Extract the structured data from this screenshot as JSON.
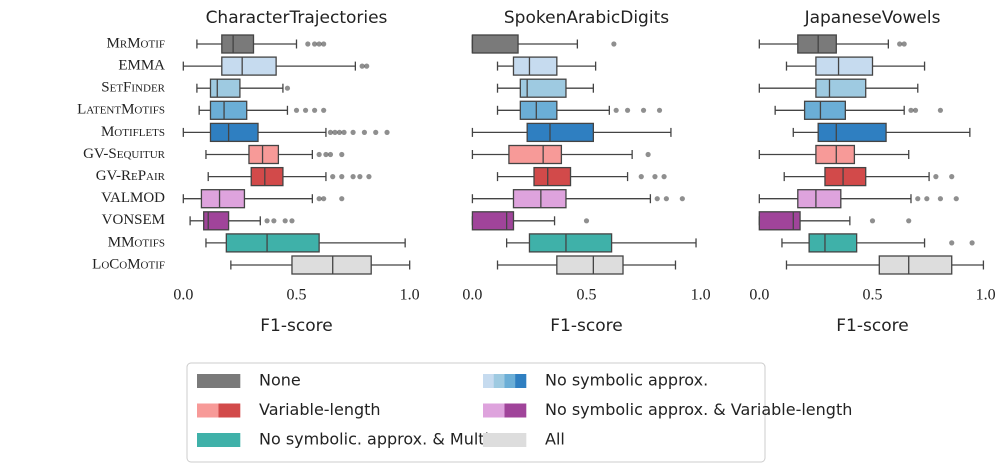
{
  "chart_data": [
    {
      "type": "box",
      "title": "CharacterTrajectories",
      "xlabel": "F1-score",
      "categories": [
        "MrMotif",
        "EMMA",
        "SetFinder",
        "LatentMotifs",
        "Motiflets",
        "GV-Sequitur",
        "GV-RePair",
        "VALMOD",
        "VONSEM",
        "MMotifs",
        "LoCoMotif"
      ],
      "colors": [
        "#7a7a7a",
        "#c6dbef",
        "#9ecae1",
        "#6baed6",
        "#2f7fc1",
        "#f79a98",
        "#d24a4a",
        "#dea3dd",
        "#a0449a",
        "#3fb1a9",
        "#dddddd"
      ],
      "xlim": [
        -0.05,
        1.05
      ],
      "xticks": [
        {
          "value": 0,
          "label": "0.0"
        },
        0.5,
        {
          "value": 1,
          "label": "1.0"
        }
      ],
      "boxes": [
        {
          "whislo": 0.06,
          "q1": 0.17,
          "med": 0.22,
          "q3": 0.31,
          "whishi": 0.5,
          "fliers": [
            0.55,
            0.58,
            0.6,
            0.62
          ]
        },
        {
          "whislo": 0.0,
          "q1": 0.17,
          "med": 0.26,
          "q3": 0.41,
          "whishi": 0.76,
          "fliers": [
            0.79,
            0.81
          ]
        },
        {
          "whislo": 0.06,
          "q1": 0.12,
          "med": 0.15,
          "q3": 0.25,
          "whishi": 0.44,
          "fliers": [
            0.46
          ]
        },
        {
          "whislo": 0.07,
          "q1": 0.12,
          "med": 0.18,
          "q3": 0.28,
          "whishi": 0.46,
          "fliers": [
            0.5,
            0.54,
            0.58,
            0.62
          ]
        },
        {
          "whislo": 0.0,
          "q1": 0.12,
          "med": 0.2,
          "q3": 0.33,
          "whishi": 0.63,
          "fliers": [
            0.65,
            0.67,
            0.69,
            0.71,
            0.75,
            0.8,
            0.85,
            0.9
          ]
        },
        {
          "whislo": 0.1,
          "q1": 0.29,
          "med": 0.35,
          "q3": 0.42,
          "whishi": 0.57,
          "fliers": [
            0.6,
            0.63,
            0.65,
            0.7
          ]
        },
        {
          "whislo": 0.11,
          "q1": 0.3,
          "med": 0.36,
          "q3": 0.44,
          "whishi": 0.63,
          "fliers": [
            0.66,
            0.7,
            0.75,
            0.78,
            0.82
          ]
        },
        {
          "whislo": 0.0,
          "q1": 0.08,
          "med": 0.16,
          "q3": 0.27,
          "whishi": 0.57,
          "fliers": [
            0.6,
            0.62,
            0.7
          ]
        },
        {
          "whislo": 0.03,
          "q1": 0.09,
          "med": 0.11,
          "q3": 0.2,
          "whishi": 0.34,
          "fliers": [
            0.37,
            0.4,
            0.45,
            0.48
          ]
        },
        {
          "whislo": 0.1,
          "q1": 0.19,
          "med": 0.37,
          "q3": 0.6,
          "whishi": 0.98,
          "fliers": []
        },
        {
          "whislo": 0.21,
          "q1": 0.48,
          "med": 0.66,
          "q3": 0.83,
          "whishi": 1.0,
          "fliers": []
        }
      ]
    },
    {
      "type": "box",
      "title": "SpokenArabicDigits",
      "xlabel": "F1-score",
      "xlim": [
        -0.05,
        1.05
      ],
      "xticks": [
        {
          "value": 0,
          "label": "0.0"
        },
        0.5,
        {
          "value": 1,
          "label": "1.0"
        }
      ],
      "boxes": [
        {
          "whislo": 0.0,
          "q1": 0.0,
          "med": 0.0,
          "q3": 0.2,
          "whishi": 0.46,
          "fliers": [
            0.62
          ]
        },
        {
          "whislo": 0.11,
          "q1": 0.18,
          "med": 0.25,
          "q3": 0.37,
          "whishi": 0.54,
          "fliers": []
        },
        {
          "whislo": 0.11,
          "q1": 0.21,
          "med": 0.24,
          "q3": 0.41,
          "whishi": 0.53,
          "fliers": []
        },
        {
          "whislo": 0.11,
          "q1": 0.21,
          "med": 0.28,
          "q3": 0.37,
          "whishi": 0.6,
          "fliers": [
            0.63,
            0.68,
            0.75,
            0.82
          ]
        },
        {
          "whislo": 0.0,
          "q1": 0.24,
          "med": 0.34,
          "q3": 0.53,
          "whishi": 0.87,
          "fliers": []
        },
        {
          "whislo": 0.0,
          "q1": 0.16,
          "med": 0.31,
          "q3": 0.39,
          "whishi": 0.7,
          "fliers": [
            0.77
          ]
        },
        {
          "whislo": 0.11,
          "q1": 0.27,
          "med": 0.33,
          "q3": 0.43,
          "whishi": 0.68,
          "fliers": [
            0.74,
            0.8,
            0.84
          ]
        },
        {
          "whislo": 0.0,
          "q1": 0.18,
          "med": 0.3,
          "q3": 0.41,
          "whishi": 0.78,
          "fliers": [
            0.81,
            0.85,
            0.92
          ]
        },
        {
          "whislo": 0.0,
          "q1": 0.0,
          "med": 0.15,
          "q3": 0.18,
          "whishi": 0.36,
          "fliers": [
            0.5
          ]
        },
        {
          "whislo": 0.15,
          "q1": 0.25,
          "med": 0.41,
          "q3": 0.61,
          "whishi": 0.98,
          "fliers": []
        },
        {
          "whislo": 0.11,
          "q1": 0.37,
          "med": 0.53,
          "q3": 0.66,
          "whishi": 0.89,
          "fliers": []
        }
      ]
    },
    {
      "type": "box",
      "title": "JapaneseVowels",
      "xlabel": "F1-score",
      "xlim": [
        -0.05,
        1.05
      ],
      "xticks": [
        {
          "value": 0,
          "label": "0.0"
        },
        0.5,
        {
          "value": 1,
          "label": "1.0"
        }
      ],
      "boxes": [
        {
          "whislo": 0.0,
          "q1": 0.17,
          "med": 0.26,
          "q3": 0.34,
          "whishi": 0.57,
          "fliers": [
            0.62,
            0.64
          ]
        },
        {
          "whislo": 0.12,
          "q1": 0.25,
          "med": 0.35,
          "q3": 0.5,
          "whishi": 0.73,
          "fliers": []
        },
        {
          "whislo": 0.0,
          "q1": 0.25,
          "med": 0.31,
          "q3": 0.47,
          "whishi": 0.7,
          "fliers": []
        },
        {
          "whislo": 0.07,
          "q1": 0.2,
          "med": 0.27,
          "q3": 0.38,
          "whishi": 0.64,
          "fliers": [
            0.67,
            0.69,
            0.8
          ]
        },
        {
          "whislo": 0.15,
          "q1": 0.26,
          "med": 0.34,
          "q3": 0.56,
          "whishi": 0.93,
          "fliers": []
        },
        {
          "whislo": 0.0,
          "q1": 0.25,
          "med": 0.34,
          "q3": 0.42,
          "whishi": 0.66,
          "fliers": []
        },
        {
          "whislo": 0.11,
          "q1": 0.29,
          "med": 0.37,
          "q3": 0.47,
          "whishi": 0.75,
          "fliers": [
            0.78,
            0.85
          ]
        },
        {
          "whislo": 0.0,
          "q1": 0.17,
          "med": 0.25,
          "q3": 0.36,
          "whishi": 0.67,
          "fliers": [
            0.7,
            0.74,
            0.8,
            0.87
          ]
        },
        {
          "whislo": 0.0,
          "q1": 0.0,
          "med": 0.15,
          "q3": 0.18,
          "whishi": 0.4,
          "fliers": [
            0.5,
            0.66
          ]
        },
        {
          "whislo": 0.1,
          "q1": 0.22,
          "med": 0.29,
          "q3": 0.43,
          "whishi": 0.73,
          "fliers": [
            0.85,
            0.94
          ]
        },
        {
          "whislo": 0.12,
          "q1": 0.53,
          "med": 0.66,
          "q3": 0.85,
          "whishi": 0.99,
          "fliers": []
        }
      ]
    }
  ],
  "legend": [
    {
      "name": "None",
      "colors": [
        "#7a7a7a"
      ]
    },
    {
      "name": "No symbolic approx.",
      "colors": [
        "#c6dbef",
        "#9ecae1",
        "#6baed6",
        "#2f7fc1"
      ]
    },
    {
      "name": "Variable-length",
      "colors": [
        "#f79a98",
        "#d24a4a"
      ]
    },
    {
      "name": "No symbolic approx. & Variable-length",
      "colors": [
        "#dea3dd",
        "#a0449a"
      ]
    },
    {
      "name": "No symbolic. approx. & Multivar.",
      "colors": [
        "#3fb1a9"
      ]
    },
    {
      "name": "All",
      "colors": [
        "#dddddd"
      ]
    }
  ]
}
